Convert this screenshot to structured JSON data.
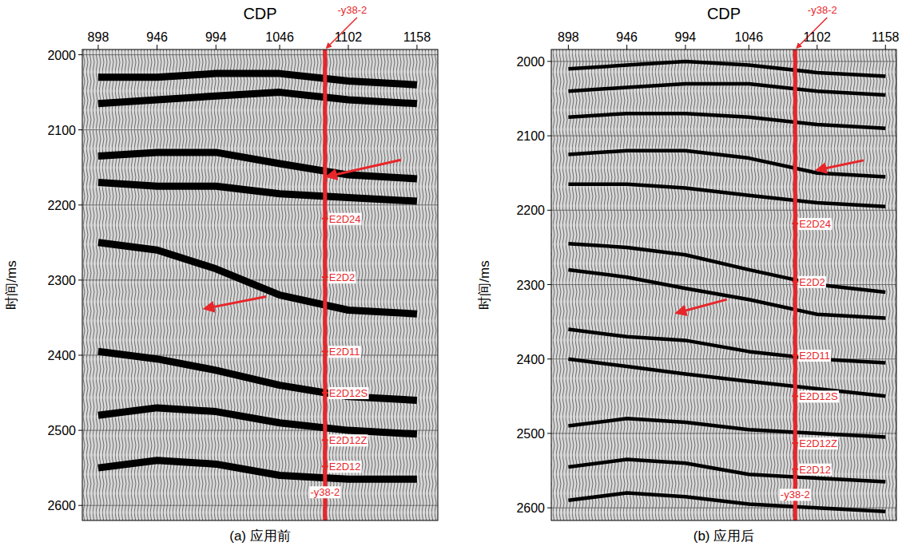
{
  "chart_data": [
    {
      "type": "line",
      "title": "(a) 应用前",
      "x_label": "CDP",
      "y_label": "时间/ms",
      "xlim": [
        885,
        1175
      ],
      "ylim": [
        1993,
        2620
      ],
      "xticks": [
        898,
        946,
        994,
        1046,
        1102,
        1158
      ],
      "yticks": [
        2000,
        2100,
        2200,
        2300,
        2400,
        2500,
        2600
      ],
      "grid": true,
      "x": [
        898,
        946,
        994,
        1046,
        1102,
        1158
      ],
      "series": [
        {
          "color": "#000000",
          "values": [
            2030,
            2030,
            2025,
            2025,
            2035,
            2040
          ]
        },
        {
          "color": "#000000",
          "values": [
            2065,
            2060,
            2055,
            2050,
            2060,
            2065
          ]
        },
        {
          "color": "#000000",
          "values": [
            2135,
            2130,
            2130,
            2145,
            2160,
            2165
          ]
        },
        {
          "color": "#000000",
          "values": [
            2170,
            2175,
            2175,
            2185,
            2190,
            2195
          ]
        },
        {
          "color": "#000000",
          "values": [
            2250,
            2260,
            2285,
            2320,
            2340,
            2345
          ]
        },
        {
          "color": "#000000",
          "values": [
            2395,
            2405,
            2420,
            2440,
            2455,
            2460
          ]
        },
        {
          "color": "#000000",
          "values": [
            2480,
            2470,
            2475,
            2490,
            2500,
            2505
          ]
        },
        {
          "color": "#000000",
          "values": [
            2550,
            2540,
            2545,
            2560,
            2565,
            2565
          ]
        }
      ],
      "well": {
        "name": "-y38-2",
        "cdp": 1083,
        "color": "#e8262a",
        "tops": [
          {
            "label": "E2D24",
            "value": 2218
          },
          {
            "label": "E2D2",
            "value": 2296
          },
          {
            "label": "E2D11",
            "value": 2395
          },
          {
            "label": "E2D12S",
            "value": 2450
          },
          {
            "label": "E2D12Z",
            "value": 2513
          },
          {
            "label": "E2D12",
            "value": 2548
          }
        ],
        "bottom": 2582
      },
      "arrows": [
        {
          "x": [
            1145,
            1085
          ],
          "y": [
            2140,
            2162
          ]
        },
        {
          "x": [
            1035,
            985
          ],
          "y": [
            2322,
            2338
          ]
        }
      ]
    },
    {
      "type": "line",
      "title": "(b) 应用后",
      "x_label": "CDP",
      "y_label": "时间/ms",
      "xlim": [
        884,
        1167
      ],
      "ylim": [
        1984,
        2617
      ],
      "xticks": [
        898,
        946,
        994,
        1046,
        1102,
        1158
      ],
      "yticks": [
        2000,
        2100,
        2200,
        2300,
        2400,
        2500,
        2600
      ],
      "grid": true,
      "x": [
        898,
        946,
        994,
        1046,
        1102,
        1158
      ],
      "series": [
        {
          "color": "#000000",
          "values": [
            2010,
            2005,
            2000,
            2005,
            2015,
            2020
          ]
        },
        {
          "color": "#000000",
          "values": [
            2040,
            2035,
            2030,
            2030,
            2040,
            2045
          ]
        },
        {
          "color": "#000000",
          "values": [
            2075,
            2070,
            2070,
            2075,
            2085,
            2090
          ]
        },
        {
          "color": "#000000",
          "values": [
            2125,
            2120,
            2120,
            2130,
            2150,
            2155
          ]
        },
        {
          "color": "#000000",
          "values": [
            2165,
            2165,
            2170,
            2180,
            2190,
            2195
          ]
        },
        {
          "color": "#000000",
          "values": [
            2245,
            2250,
            2260,
            2280,
            2300,
            2310
          ]
        },
        {
          "color": "#000000",
          "values": [
            2280,
            2290,
            2305,
            2320,
            2340,
            2345
          ]
        },
        {
          "color": "#000000",
          "values": [
            2360,
            2370,
            2375,
            2390,
            2400,
            2405
          ]
        },
        {
          "color": "#000000",
          "values": [
            2400,
            2410,
            2420,
            2430,
            2440,
            2450
          ]
        },
        {
          "color": "#000000",
          "values": [
            2490,
            2480,
            2485,
            2495,
            2500,
            2505
          ]
        },
        {
          "color": "#000000",
          "values": [
            2545,
            2535,
            2540,
            2555,
            2560,
            2565
          ]
        },
        {
          "color": "#000000",
          "values": [
            2590,
            2580,
            2585,
            2595,
            2600,
            2605
          ]
        }
      ],
      "well": {
        "name": "-y38-2",
        "cdp": 1084,
        "color": "#e8262a",
        "tops": [
          {
            "label": "E2D24",
            "value": 2218
          },
          {
            "label": "E2D2",
            "value": 2296
          },
          {
            "label": "E2D11",
            "value": 2395
          },
          {
            "label": "E2D12S",
            "value": 2450
          },
          {
            "label": "E2D12Z",
            "value": 2513
          },
          {
            "label": "E2D12",
            "value": 2548
          }
        ],
        "bottom": 2582
      },
      "arrows": [
        {
          "x": [
            1140,
            1102
          ],
          "y": [
            2133,
            2146
          ]
        },
        {
          "x": [
            1028,
            987
          ],
          "y": [
            2320,
            2338
          ]
        }
      ]
    }
  ]
}
